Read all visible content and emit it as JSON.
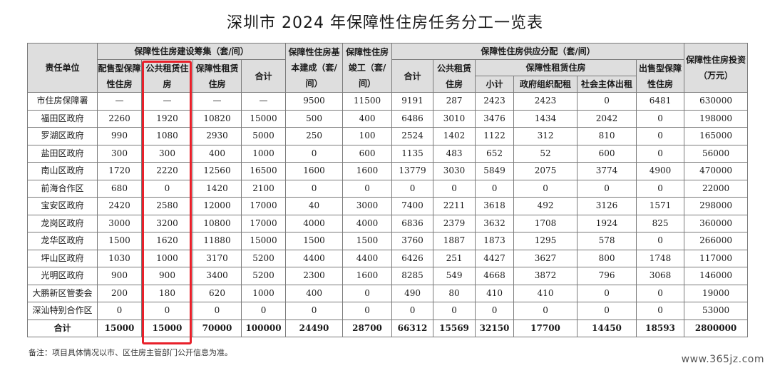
{
  "title": "深圳市 2024 年保障性住房任务分工一览表",
  "headers": {
    "unit": "责任单位",
    "group_raise": "保障性住房建设筹集（套/间）",
    "sale_alloc": "配售型保障性住房",
    "public_rent": "公共租赁住房",
    "affordable_rent": "保障性租赁住房",
    "subtotal_raise": "合计",
    "basic_built": "保障性住房基本建成（套/间）",
    "completed": "保障性住房竣工（套/间）",
    "group_supply": "保障性住房供应分配（套/间）",
    "supply_total": "合计",
    "supply_public_rent": "公共租赁住房",
    "group_affordable_rent": "保障性租赁住房",
    "ar_subtotal": "小计",
    "ar_gov": "政府组织配租",
    "ar_social": "社会主体出租",
    "sale_type": "出售型保障性住房",
    "investment": "保障性住房投资（万元）"
  },
  "rows": [
    {
      "unit": "市住房保障署",
      "c": [
        "—",
        "—",
        "—",
        "—",
        "9500",
        "11500",
        "9191",
        "287",
        "2423",
        "2423",
        "0",
        "6481",
        "630000"
      ]
    },
    {
      "unit": "福田区政府",
      "c": [
        "2260",
        "1920",
        "10820",
        "15000",
        "500",
        "400",
        "6486",
        "3010",
        "3476",
        "1434",
        "2042",
        "0",
        "198000"
      ]
    },
    {
      "unit": "罗湖区政府",
      "c": [
        "990",
        "1080",
        "2930",
        "5000",
        "250",
        "100",
        "2524",
        "1402",
        "1122",
        "312",
        "810",
        "0",
        "165000"
      ]
    },
    {
      "unit": "盐田区政府",
      "c": [
        "300",
        "300",
        "400",
        "1000",
        "0",
        "600",
        "1135",
        "483",
        "652",
        "52",
        "600",
        "0",
        "56000"
      ]
    },
    {
      "unit": "南山区政府",
      "c": [
        "1720",
        "2220",
        "12560",
        "16500",
        "1600",
        "1600",
        "13779",
        "3030",
        "5849",
        "2075",
        "3774",
        "4900",
        "470000"
      ]
    },
    {
      "unit": "前海合作区",
      "c": [
        "680",
        "0",
        "1420",
        "2100",
        "0",
        "0",
        "0",
        "0",
        "0",
        "0",
        "0",
        "0",
        "22000"
      ]
    },
    {
      "unit": "宝安区政府",
      "c": [
        "2420",
        "2580",
        "12000",
        "17000",
        "40",
        "3000",
        "7400",
        "2211",
        "3618",
        "492",
        "3126",
        "1571",
        "298000"
      ]
    },
    {
      "unit": "龙岗区政府",
      "c": [
        "3000",
        "3200",
        "10800",
        "17000",
        "4000",
        "4000",
        "6836",
        "2379",
        "3632",
        "1708",
        "1924",
        "825",
        "360000"
      ]
    },
    {
      "unit": "龙华区政府",
      "c": [
        "1500",
        "1620",
        "11880",
        "15000",
        "1500",
        "1500",
        "3760",
        "1887",
        "1873",
        "1295",
        "578",
        "0",
        "266000"
      ]
    },
    {
      "unit": "坪山区政府",
      "c": [
        "1030",
        "1000",
        "3170",
        "5200",
        "4400",
        "4400",
        "6426",
        "251",
        "4427",
        "3627",
        "800",
        "1748",
        "117000"
      ]
    },
    {
      "unit": "光明区政府",
      "c": [
        "900",
        "900",
        "3400",
        "5200",
        "2300",
        "1600",
        "8285",
        "549",
        "4668",
        "3872",
        "796",
        "3068",
        "146000"
      ]
    },
    {
      "unit": "大鹏新区管委会",
      "c": [
        "200",
        "180",
        "620",
        "1000",
        "400",
        "0",
        "490",
        "80",
        "410",
        "410",
        "0",
        "0",
        "19000"
      ]
    },
    {
      "unit": "深汕特别合作区",
      "c": [
        "0",
        "0",
        "0",
        "0",
        "0",
        "0",
        "0",
        "0",
        "0",
        "0",
        "0",
        "0",
        "53000"
      ]
    }
  ],
  "total": {
    "unit": "合计",
    "c": [
      "15000",
      "15000",
      "70000",
      "100000",
      "24490",
      "28700",
      "66312",
      "15569",
      "32150",
      "17700",
      "14450",
      "18593",
      "2800000"
    ]
  },
  "note": "备注：项目具体情况以市、区住房主管部门公开信息为准。",
  "watermark": "www.365jz.com",
  "highlight_color": "#e8202a",
  "header_bg": "#dedede"
}
